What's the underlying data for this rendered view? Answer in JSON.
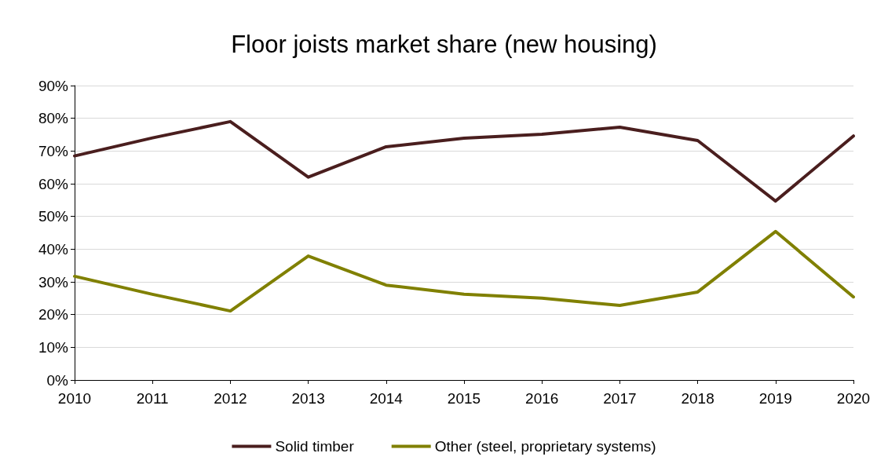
{
  "chart_data": {
    "type": "line",
    "title": "Floor joists market share (new housing)",
    "categories": [
      "2010",
      "2011",
      "2012",
      "2013",
      "2014",
      "2015",
      "2016",
      "2017",
      "2018",
      "2019",
      "2020"
    ],
    "series": [
      {
        "name": "Solid timber",
        "color": "#4a1e1e",
        "values": [
          68.5,
          74,
          79,
          62,
          71.3,
          73.9,
          75.1,
          77.3,
          73.2,
          54.7,
          74.6
        ]
      },
      {
        "name": "Other (steel, proprietary systems)",
        "color": "#808000",
        "values": [
          31.7,
          26.2,
          21.1,
          37.9,
          29,
          26.2,
          25,
          22.8,
          26.9,
          45.4,
          25.4
        ]
      }
    ],
    "ylim": [
      0,
      90
    ],
    "yticks": [
      {
        "value": 0,
        "label": "0%"
      },
      {
        "value": 10,
        "label": "10%"
      },
      {
        "value": 20,
        "label": "20%"
      },
      {
        "value": 30,
        "label": "30%"
      },
      {
        "value": 40,
        "label": "40%"
      },
      {
        "value": 50,
        "label": "50%"
      },
      {
        "value": 60,
        "label": "60%"
      },
      {
        "value": 70,
        "label": "70%"
      },
      {
        "value": 80,
        "label": "80%"
      },
      {
        "value": 90,
        "label": "90%"
      }
    ],
    "grid": "y",
    "legend": "bottom",
    "marker": "none",
    "line_style": "solid"
  }
}
